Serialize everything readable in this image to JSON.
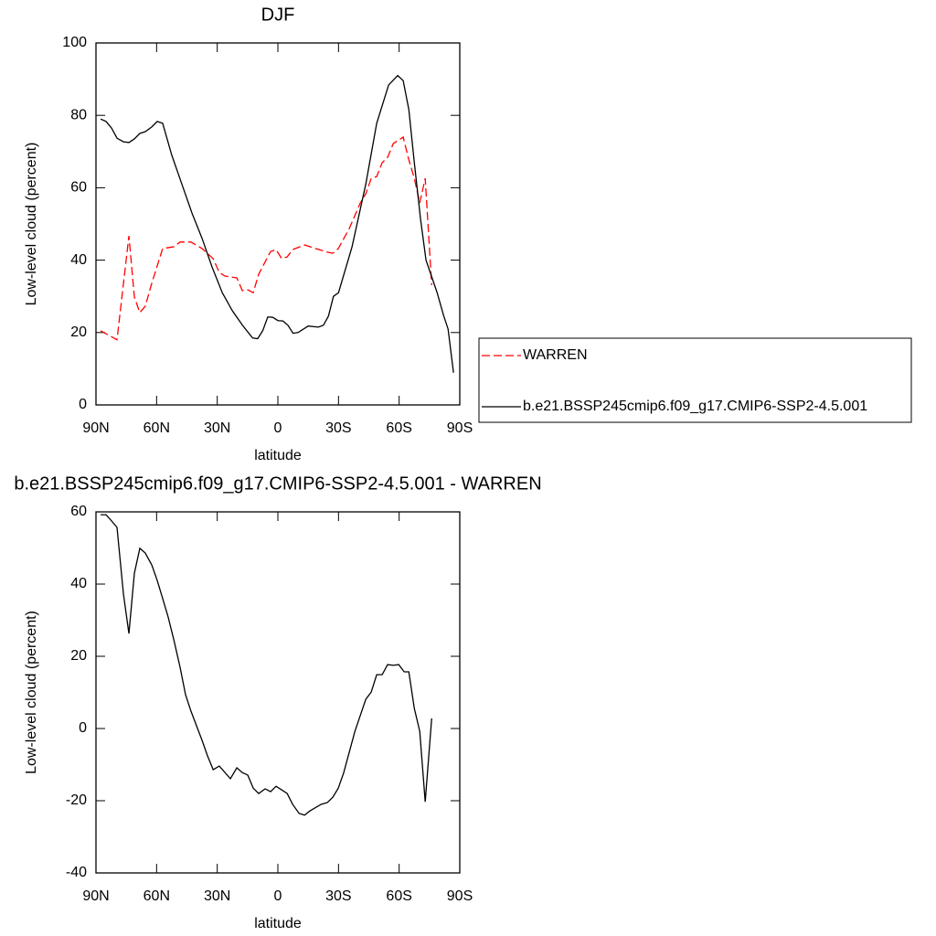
{
  "chart_data": [
    {
      "type": "line",
      "title": "DJF",
      "x_label": "latitude",
      "y_label": "Low-level cloud (percent)",
      "xlim": [
        90,
        -90
      ],
      "ylim": [
        0,
        100
      ],
      "xticks": [
        {
          "value": 90,
          "label": "90N"
        },
        {
          "value": 60,
          "label": "60N"
        },
        {
          "value": 30,
          "label": "30N"
        },
        0,
        {
          "value": -30,
          "label": "30S"
        },
        {
          "value": -60,
          "label": "60S"
        },
        {
          "value": -90,
          "label": "90S"
        }
      ],
      "yticks": [
        0,
        20,
        40,
        60,
        80,
        100
      ],
      "legend": "outside-right",
      "series": [
        {
          "name": "WARREN",
          "color": "#ff0000",
          "dash": "dashed",
          "x": [
            87.7,
            79.6,
            73.7,
            71,
            68.3,
            65.6,
            62.4,
            57,
            51.5,
            48.4,
            43,
            37.5,
            32,
            29,
            26.2,
            20.3,
            17.6,
            14.9,
            12.2,
            9.5,
            3.6,
            0.9,
            -1.9,
            -4.6,
            -7.3,
            -13.2,
            -18.6,
            -24.5,
            -27.2,
            -29.9,
            -35.3,
            -40.8,
            -43.5,
            -46.2,
            -48.9,
            -51.6,
            -54.3,
            -57.1,
            -62,
            -64.8,
            -67.5,
            -70.2,
            -72.9,
            -76.1
          ],
          "values": [
            20.5,
            18,
            46.7,
            29.8,
            25.5,
            27.3,
            33.6,
            43.2,
            43.7,
            45,
            45,
            43.2,
            40.4,
            36.6,
            35.6,
            35.1,
            31.6,
            31.8,
            31,
            36.1,
            42.4,
            42.9,
            40.4,
            40.9,
            42.9,
            44.2,
            43.2,
            42.2,
            41.9,
            43.2,
            48.7,
            55.8,
            58.3,
            62.6,
            63.1,
            66.9,
            68.4,
            72.2,
            74,
            67.7,
            62.6,
            55.8,
            62.6,
            33.1
          ]
        },
        {
          "name": "b.e21.BSSP245cmip6.f09_g17.CMIP6-SSP2-4.5.001",
          "color": "#000000",
          "dash": "solid",
          "x": [
            87.7,
            85,
            82.3,
            79.6,
            76.4,
            73.7,
            71,
            68.3,
            65.6,
            62.4,
            59.7,
            57,
            52.5,
            47.5,
            42.5,
            37.5,
            32.5,
            27.5,
            22.5,
            17.5,
            12.5,
            10,
            7.5,
            5,
            2.5,
            0,
            -2.5,
            -5,
            -7.5,
            -10,
            -15,
            -20,
            -22.5,
            -25,
            -27.5,
            -30,
            -36.7,
            -43.5,
            -48.9,
            -54.8,
            -59.3,
            -62,
            -64.8,
            -67.5,
            -70.6,
            -73.3,
            -78.8,
            -82,
            -84.2,
            -86.9
          ],
          "values": [
            79,
            78.3,
            76.5,
            73.7,
            72.7,
            72.5,
            73.5,
            75,
            75.5,
            76.8,
            78.3,
            77.8,
            69,
            61,
            53,
            46,
            38,
            31,
            26,
            22,
            18.5,
            18.3,
            20.5,
            24.3,
            24.2,
            23.3,
            23.2,
            22,
            19.8,
            20,
            21.8,
            21.5,
            22,
            24.5,
            30,
            31,
            43.7,
            61,
            77.8,
            88.4,
            91,
            89.6,
            81.6,
            67,
            51.3,
            40,
            31,
            24.7,
            21,
            8.9
          ]
        }
      ]
    },
    {
      "type": "line",
      "title": "b.e21.BSSP245cmip6.f09_g17.CMIP6-SSP2-4.5.001 - WARREN",
      "x_label": "latitude",
      "y_label": "Low-level cloud (percent)",
      "xlim": [
        90,
        -90
      ],
      "ylim": [
        -40,
        60
      ],
      "xticks": [
        {
          "value": 90,
          "label": "90N"
        },
        {
          "value": 60,
          "label": "60N"
        },
        {
          "value": 30,
          "label": "30N"
        },
        0,
        {
          "value": -30,
          "label": "30S"
        },
        {
          "value": -60,
          "label": "60S"
        },
        {
          "value": -90,
          "label": "90S"
        }
      ],
      "yticks": [
        -40,
        -20,
        0,
        20,
        40,
        60
      ],
      "series": [
        {
          "color": "#000000",
          "dash": "solid",
          "x": [
            87.7,
            85,
            82.3,
            79.6,
            76.4,
            73.7,
            71,
            68.3,
            65.6,
            62.4,
            59.7,
            57,
            54.3,
            51.5,
            48.4,
            45.7,
            43,
            37.5,
            34.8,
            32,
            29,
            23.5,
            20.3,
            17.6,
            14.9,
            12.2,
            9.5,
            6.3,
            3.6,
            0.9,
            -1.9,
            -4.6,
            -7.3,
            -10.5,
            -13.2,
            -15.9,
            -21.4,
            -24.5,
            -27.2,
            -29.9,
            -32.6,
            -38.1,
            -43.5,
            -46.2,
            -48.9,
            -51.6,
            -54.3,
            -57.1,
            -59.8,
            -62.5,
            -64.8,
            -67.5,
            -70.2,
            -72.9,
            -76.1
          ],
          "values": [
            59.2,
            59.2,
            57.5,
            55.7,
            37.2,
            26.3,
            43,
            49.9,
            48.6,
            45.3,
            41,
            36,
            30.9,
            24.6,
            17,
            9.4,
            4.8,
            -3.3,
            -7.6,
            -11.4,
            -10.4,
            -13.9,
            -10.9,
            -12.2,
            -12.9,
            -16.5,
            -18,
            -16.7,
            -17.5,
            -16,
            -17,
            -18,
            -21,
            -23.5,
            -24,
            -22.8,
            -21,
            -20.5,
            -19,
            -16.5,
            -12.2,
            -0.8,
            8.1,
            10.1,
            14.9,
            14.9,
            17.7,
            17.5,
            17.7,
            15.7,
            15.7,
            5.6,
            -0.8,
            -20.3,
            2.8
          ]
        }
      ]
    }
  ]
}
